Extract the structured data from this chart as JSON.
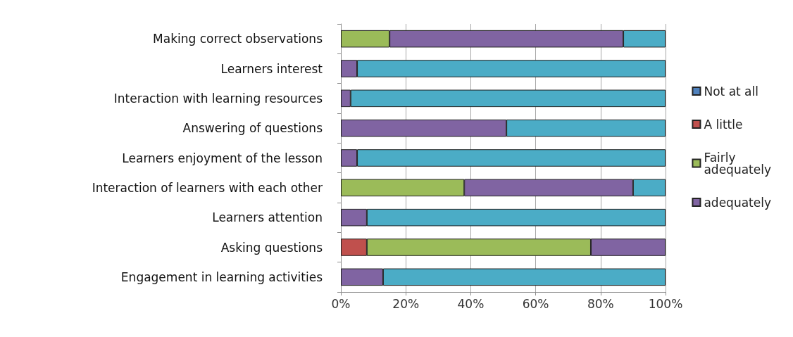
{
  "chart_data": {
    "type": "bar",
    "orientation": "horizontal",
    "stacked": true,
    "categories": [
      "Making correct observations",
      "Learners interest",
      "Interaction with learning resources",
      "Answering of questions",
      "Learners enjoyment of the lesson",
      "Interaction of learners with each other",
      "Learners attention",
      "Asking questions",
      "Engagement in learning activities"
    ],
    "series": [
      {
        "name": "Not at all",
        "color": "#4f81bd",
        "values": [
          0,
          0,
          0,
          0,
          0,
          0,
          0,
          0,
          0
        ]
      },
      {
        "name": "A little",
        "color": "#c0504d",
        "values": [
          0,
          0,
          0,
          0,
          0,
          0,
          0,
          8,
          0
        ]
      },
      {
        "name": "Fairly adequately",
        "color": "#9bbb59",
        "values": [
          15,
          0,
          0,
          0,
          0,
          38,
          0,
          69,
          0
        ]
      },
      {
        "name": "adequately",
        "color": "#8064a2",
        "values": [
          72,
          5,
          3,
          51,
          5,
          52,
          8,
          23,
          13
        ]
      },
      {
        "color": "#4bacc6",
        "values": [
          13,
          95,
          97,
          49,
          95,
          10,
          92,
          0,
          87
        ]
      }
    ],
    "xlim": [
      0,
      100
    ],
    "xticks": [
      {
        "value": 0,
        "label": "0%"
      },
      {
        "value": 20,
        "label": "20%"
      },
      {
        "value": 40,
        "label": "40%"
      },
      {
        "value": 60,
        "label": "60%"
      },
      {
        "value": 80,
        "label": "80%"
      },
      {
        "value": 100,
        "label": "100%"
      }
    ],
    "grid": "x",
    "legend": "right"
  }
}
